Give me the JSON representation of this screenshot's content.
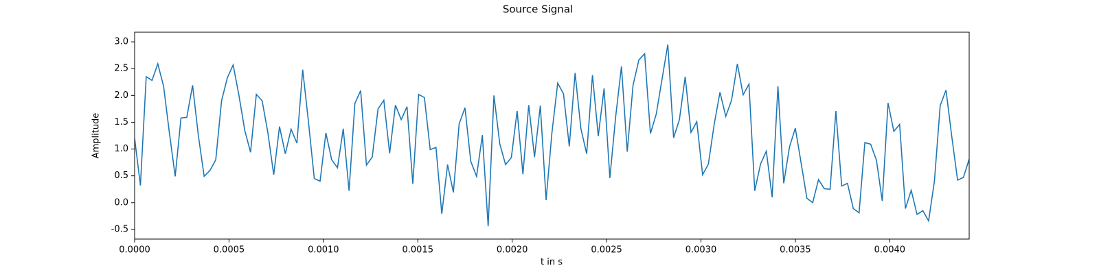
{
  "chart_data": {
    "type": "line",
    "title": "Source Signal",
    "xlabel": "t in s",
    "ylabel": "Amplitude",
    "color": "#1f77b4",
    "x": [
      0,
      3.07e-05,
      6.14e-05,
      9.21e-05,
      0.0001228,
      0.0001535,
      0.0001842,
      0.0002149,
      0.0002456,
      0.0002763,
      0.000307,
      0.0003377,
      0.0003684,
      0.0003991,
      0.0004298,
      0.0004605,
      0.0004912,
      0.0005219,
      0.0005526,
      0.0005833,
      0.000614,
      0.0006447,
      0.0006754,
      0.0007061,
      0.0007368,
      0.0007675,
      0.0007982,
      0.0008289,
      0.0008596,
      0.0008903,
      0.000921,
      0.0009517,
      0.0009824,
      0.0010131,
      0.0010438,
      0.0010745,
      0.0011052,
      0.0011359,
      0.0011666,
      0.0011973,
      0.001228,
      0.0012587,
      0.0012894,
      0.0013201,
      0.0013508,
      0.0013815,
      0.0014122,
      0.0014429,
      0.0014736,
      0.0015043,
      0.001535,
      0.0015657,
      0.0015964,
      0.0016271,
      0.0016578,
      0.0016885,
      0.0017192,
      0.0017499,
      0.0017806,
      0.0018113,
      0.001842,
      0.0018727,
      0.0019034,
      0.0019341,
      0.0019648,
      0.0019955,
      0.0020262,
      0.0020569,
      0.0020876,
      0.0021183,
      0.002149,
      0.0021797,
      0.0022104,
      0.0022411,
      0.0022718,
      0.0023025,
      0.0023332,
      0.0023639,
      0.0023946,
      0.0024253,
      0.002456,
      0.0024867,
      0.0025174,
      0.0025481,
      0.0025788,
      0.0026095,
      0.0026402,
      0.0026709,
      0.0027016,
      0.0027323,
      0.002763,
      0.0027937,
      0.0028244,
      0.0028551,
      0.0028858,
      0.0029165,
      0.0029472,
      0.0029779,
      0.0030086,
      0.0030393,
      0.00307,
      0.0031007,
      0.0031314,
      0.0031621,
      0.0031928,
      0.0032235,
      0.0032542,
      0.0032849,
      0.0033156,
      0.0033463,
      0.003377,
      0.0034077,
      0.0034384,
      0.0034691,
      0.0034998,
      0.0035305,
      0.0035612,
      0.0035919,
      0.0036226,
      0.0036533,
      0.003684,
      0.0037147,
      0.0037454,
      0.0037761,
      0.0038068,
      0.0038375,
      0.0038682,
      0.0038989,
      0.0039296,
      0.0039603,
      0.003991,
      0.0040217,
      0.0040524,
      0.0040831,
      0.0041138,
      0.0041445,
      0.0041752,
      0.0042059,
      0.0042366,
      0.0042673,
      0.004298,
      0.0043287,
      0.0043594,
      0.0043901,
      0.0044208
    ],
    "values": [
      1.2,
      0.32,
      2.35,
      2.28,
      2.59,
      2.17,
      1.3,
      0.49,
      1.58,
      1.59,
      2.19,
      1.25,
      0.49,
      0.6,
      0.8,
      1.9,
      2.33,
      2.57,
      2.0,
      1.35,
      0.94,
      2.02,
      1.9,
      1.3,
      0.52,
      1.42,
      0.91,
      1.37,
      1.11,
      2.48,
      1.5,
      0.45,
      0.4,
      1.3,
      0.8,
      0.65,
      1.38,
      0.22,
      1.85,
      2.09,
      0.7,
      0.85,
      1.75,
      1.91,
      0.92,
      1.82,
      1.55,
      1.79,
      0.35,
      2.02,
      1.96,
      0.99,
      1.03,
      -0.21,
      0.71,
      0.19,
      1.47,
      1.77,
      0.77,
      0.49,
      1.26,
      -0.44,
      2.0,
      1.1,
      0.71,
      0.84,
      1.71,
      0.53,
      1.82,
      0.85,
      1.81,
      0.05,
      1.3,
      2.23,
      2.03,
      1.05,
      2.42,
      1.38,
      0.91,
      2.38,
      1.24,
      2.13,
      0.46,
      1.6,
      2.54,
      0.95,
      2.19,
      2.66,
      2.78,
      1.29,
      1.65,
      2.3,
      2.95,
      1.21,
      1.55,
      2.35,
      1.31,
      1.51,
      0.52,
      0.72,
      1.46,
      2.06,
      1.61,
      1.91,
      2.59,
      2.01,
      2.21,
      0.22,
      0.72,
      0.96,
      0.1,
      2.17,
      0.36,
      1.04,
      1.39,
      0.74,
      0.08,
      0.0,
      0.43,
      0.26,
      0.25,
      1.71,
      0.31,
      0.36,
      -0.11,
      -0.19,
      1.12,
      1.09,
      0.79,
      0.03,
      1.86,
      1.33,
      1.46,
      -0.11,
      0.23,
      -0.22,
      -0.15,
      -0.34,
      0.4,
      1.81,
      2.1,
      1.23,
      0.42,
      0.47,
      0.81
    ],
    "xlim": [
      0,
      0.0044208
    ],
    "ylim": [
      -0.68,
      3.18
    ],
    "xticks": [
      {
        "value": 0,
        "label": "0.0000"
      },
      0.0005,
      {
        "value": 0.001,
        "label": "0.0010"
      },
      0.0015,
      {
        "value": 0.002,
        "label": "0.0020"
      },
      0.0025,
      {
        "value": 0.003,
        "label": "0.0030"
      },
      0.0035,
      {
        "value": 0.004,
        "label": "0.0040"
      }
    ],
    "yticks": [
      -0.5,
      {
        "value": 0,
        "label": "0.0"
      },
      0.5,
      {
        "value": 1,
        "label": "1.0"
      },
      1.5,
      {
        "value": 2,
        "label": "2.0"
      },
      2.5,
      {
        "value": 3,
        "label": "3.0"
      }
    ]
  }
}
